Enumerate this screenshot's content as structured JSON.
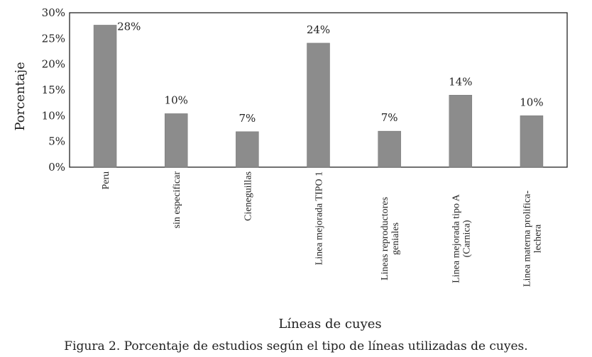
{
  "chart_data": {
    "type": "bar",
    "title": "",
    "xlabel": "Líneas de cuyes",
    "ylabel": "Porcentaje",
    "ylim": [
      0,
      30
    ],
    "yticks": [
      "0%",
      "5%",
      "10%",
      "15%",
      "20%",
      "25%",
      "30%"
    ],
    "grid": false,
    "bar_color": "#8c8c8c",
    "categories": [
      [
        "Peru"
      ],
      [
        "sin especificar"
      ],
      [
        "Cieneguillas"
      ],
      [
        "Linea mejorada TIPO 1"
      ],
      [
        "Lineas reproductores",
        "geniales"
      ],
      [
        "Linea mejorada tipo A",
        "(Carnica)"
      ],
      [
        "Linea materna prolifica-",
        "lechera"
      ]
    ],
    "values": [
      27.6,
      10.4,
      6.9,
      24.1,
      7.0,
      14.0,
      10.0
    ],
    "data_labels": [
      "28%",
      "10%",
      "7%",
      "24%",
      "7%",
      "14%",
      "10%"
    ]
  },
  "caption": "Figura 2. Porcentaje de estudios según el tipo de líneas utilizadas de cuyes."
}
